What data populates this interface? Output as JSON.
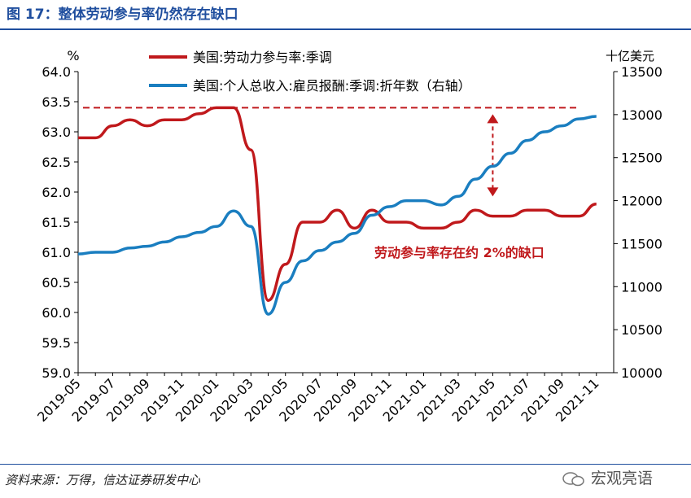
{
  "figure_title": "图 17：整体劳动参与率仍然存在缺口",
  "source_note": "资料来源：万得，信达证券研发中心",
  "watermark": "宏观亮语",
  "colors": {
    "participation": "#c0191c",
    "compensation": "#1a7ec0",
    "title": "#1f4e9e",
    "annotation": "#c0191c"
  },
  "chart_data": {
    "type": "line",
    "left_unit": "%",
    "right_unit": "十亿美元",
    "x_tick_labels": [
      "2019-05",
      "2019-07",
      "2019-09",
      "2019-11",
      "2020-01",
      "2020-03",
      "2020-05",
      "2020-07",
      "2020-09",
      "2020-11",
      "2021-01",
      "2021-03",
      "2021-05",
      "2021-07",
      "2021-09",
      "2021-11"
    ],
    "left_axis": {
      "min": 59.0,
      "max": 64.0,
      "step": 0.5,
      "tick_labels": [
        "59.0",
        "59.5",
        "60.0",
        "60.5",
        "61.0",
        "61.5",
        "62.0",
        "62.5",
        "63.0",
        "63.5",
        "64.0"
      ]
    },
    "right_axis": {
      "min": 10000,
      "max": 13500,
      "step": 500,
      "tick_labels": [
        "10000",
        "10500",
        "11000",
        "11500",
        "12000",
        "12500",
        "13000",
        "13500"
      ]
    },
    "series": [
      {
        "name": "美国:劳动力参与率:季调",
        "axis": "left",
        "x": [
          "2019-05",
          "2019-06",
          "2019-07",
          "2019-08",
          "2019-09",
          "2019-10",
          "2019-11",
          "2019-12",
          "2020-01",
          "2020-02",
          "2020-03",
          "2020-04",
          "2020-05",
          "2020-06",
          "2020-07",
          "2020-08",
          "2020-09",
          "2020-10",
          "2020-11",
          "2020-12",
          "2021-01",
          "2021-02",
          "2021-03",
          "2021-04",
          "2021-05",
          "2021-06",
          "2021-07",
          "2021-08",
          "2021-09",
          "2021-10",
          "2021-11"
        ],
        "values": [
          62.9,
          62.9,
          63.1,
          63.2,
          63.1,
          63.2,
          63.2,
          63.3,
          63.4,
          63.4,
          62.7,
          60.2,
          60.8,
          61.5,
          61.5,
          61.7,
          61.4,
          61.7,
          61.5,
          61.5,
          61.4,
          61.4,
          61.5,
          61.7,
          61.6,
          61.6,
          61.7,
          61.7,
          61.6,
          61.6,
          61.8
        ]
      },
      {
        "name": "美国:个人总收入:雇员报酬:季调:折年数（右轴）",
        "axis": "right",
        "x": [
          "2019-05",
          "2019-06",
          "2019-07",
          "2019-08",
          "2019-09",
          "2019-10",
          "2019-11",
          "2019-12",
          "2020-01",
          "2020-02",
          "2020-03",
          "2020-04",
          "2020-05",
          "2020-06",
          "2020-07",
          "2020-08",
          "2020-09",
          "2020-10",
          "2020-11",
          "2020-12",
          "2021-01",
          "2021-02",
          "2021-03",
          "2021-04",
          "2021-05",
          "2021-06",
          "2021-07",
          "2021-08",
          "2021-09",
          "2021-10",
          "2021-11"
        ],
        "values": [
          11380,
          11400,
          11400,
          11450,
          11470,
          11520,
          11580,
          11630,
          11700,
          11880,
          11700,
          10680,
          11050,
          11300,
          11420,
          11520,
          11620,
          11830,
          11930,
          12000,
          12000,
          11950,
          12050,
          12250,
          12400,
          12550,
          12700,
          12800,
          12870,
          12950,
          12980
        ]
      }
    ],
    "reference_line": {
      "axis": "left",
      "value": 63.4
    },
    "gap_arrow": {
      "x": "2021-05",
      "from": 61.9,
      "to": 63.4
    },
    "annotation": "劳动参与率存在约 2%的缺口",
    "grid": false,
    "legend_position": "top"
  }
}
